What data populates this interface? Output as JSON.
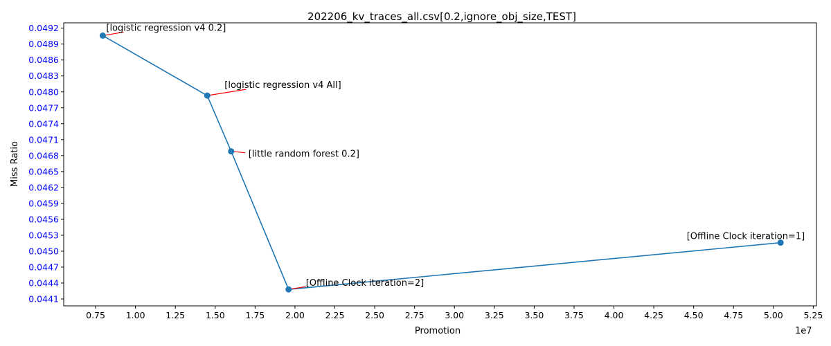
{
  "chart_data": {
    "type": "line",
    "title": "202206_kv_traces_all.csv[0.2,ignore_obj_size,TEST]",
    "xlabel": "Promotion",
    "ylabel": "Miss Ratio",
    "x_offset_label": "1e7",
    "xlim": [
      5500000,
      52700000
    ],
    "ylim": [
      0.04397,
      0.0493
    ],
    "x_ticks": [
      0.75,
      1.0,
      1.25,
      1.5,
      1.75,
      2.0,
      2.25,
      2.5,
      2.75,
      3.0,
      3.25,
      3.5,
      3.75,
      4.0,
      4.25,
      4.5,
      4.75,
      5.0,
      5.25
    ],
    "x_tick_labels": [
      "0.75",
      "1.00",
      "1.25",
      "1.50",
      "1.75",
      "2.00",
      "2.25",
      "2.50",
      "2.75",
      "3.00",
      "3.25",
      "3.50",
      "3.75",
      "4.00",
      "4.25",
      "4.50",
      "4.75",
      "5.00",
      "5.25"
    ],
    "y_tick_labels": [
      "0.0441",
      "0.0444",
      "0.0447",
      "0.0450",
      "0.0453",
      "0.0456",
      "0.0459",
      "0.0462",
      "0.0465",
      "0.0468",
      "0.0471",
      "0.0474",
      "0.0477",
      "0.0480",
      "0.0483",
      "0.0486",
      "0.0489",
      "0.0492"
    ],
    "ytick_color": "#0000ff",
    "line_color": "#1f77b4",
    "arrow_color": "#ff0000",
    "grid": false,
    "points": [
      {
        "x": 7950000,
        "y": 0.04906,
        "label": "[logistic regression v4 0.2]"
      },
      {
        "x": 14500000,
        "y": 0.04793,
        "label": "[logistic regression v4 All]"
      },
      {
        "x": 16000000,
        "y": 0.04688,
        "label": "[little random forest 0.2]"
      },
      {
        "x": 19600000,
        "y": 0.04428,
        "label": "[Offline Clock iteration=2]"
      },
      {
        "x": 50450000,
        "y": 0.04516,
        "label": "[Offline Clock iteration=1]"
      }
    ]
  }
}
